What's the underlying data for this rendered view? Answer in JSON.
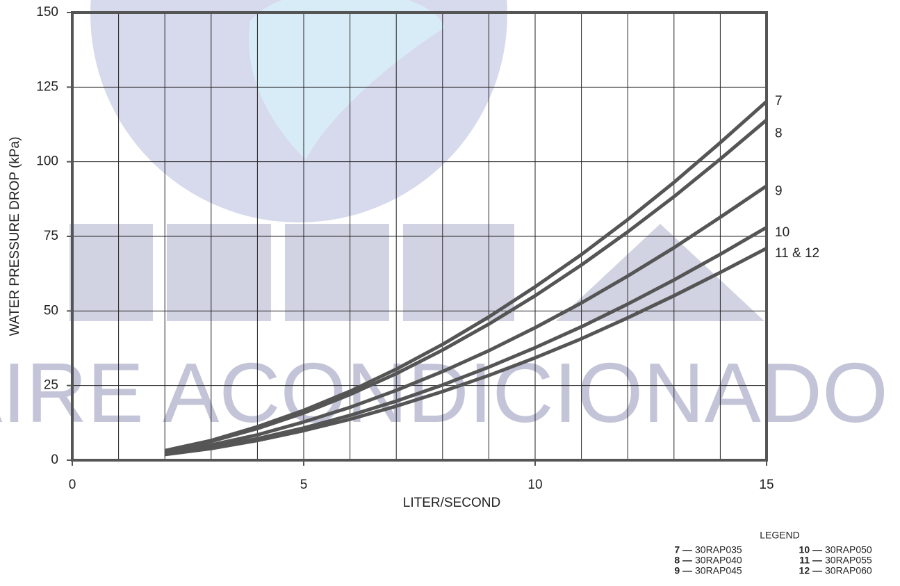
{
  "chart_data": {
    "type": "line",
    "watermark": "AIRE ACONDICIONADO",
    "xlabel": "LITER/SECOND",
    "ylabel": "WATER PRESSURE DROP (kPa)",
    "x": [
      2,
      3,
      4,
      5,
      6,
      7,
      8,
      9,
      10,
      11,
      12,
      13,
      14,
      15
    ],
    "series": [
      {
        "name": "7",
        "color": "#555555",
        "values": [
          3.2,
          6.6,
          11.2,
          16.7,
          23.1,
          30.5,
          38.8,
          48.0,
          58.1,
          68.9,
          80.6,
          93.1,
          106.4,
          120.2
        ]
      },
      {
        "name": "8",
        "color": "#555555",
        "values": [
          3.0,
          6.3,
          10.6,
          15.8,
          22.0,
          29.0,
          36.9,
          45.6,
          55.1,
          65.4,
          76.5,
          88.3,
          100.9,
          114.0
        ]
      },
      {
        "name": "9",
        "color": "#555555",
        "values": [
          2.4,
          5.1,
          8.5,
          12.8,
          17.7,
          23.4,
          29.7,
          36.7,
          44.4,
          52.7,
          61.7,
          71.2,
          81.4,
          91.9
        ]
      },
      {
        "name": "10",
        "color": "#555555",
        "values": [
          2.1,
          4.3,
          7.2,
          10.8,
          15.0,
          19.8,
          25.2,
          31.2,
          37.7,
          44.7,
          52.3,
          60.4,
          69.0,
          78.0
        ]
      },
      {
        "name": "11 & 12",
        "color": "#555555",
        "values": [
          1.9,
          3.9,
          6.6,
          9.9,
          13.7,
          18.1,
          23.0,
          28.4,
          34.3,
          40.7,
          47.7,
          55.1,
          62.9,
          71.0
        ]
      }
    ],
    "xlim": [
      0,
      15
    ],
    "xticks": [
      0,
      5,
      10,
      15
    ],
    "ylim": [
      0,
      150
    ],
    "yticks": [
      0,
      25,
      50,
      75,
      100,
      125,
      150
    ],
    "grid": true,
    "legend_table": {
      "title": "LEGEND",
      "items": [
        {
          "key": "7 —",
          "model": "30RAP035"
        },
        {
          "key": "8 —",
          "model": "30RAP040"
        },
        {
          "key": "9 —",
          "model": "30RAP045"
        },
        {
          "key": "10 —",
          "model": "30RAP050"
        },
        {
          "key": "11 —",
          "model": "30RAP055"
        },
        {
          "key": "12 —",
          "model": "30RAP060"
        }
      ]
    }
  }
}
